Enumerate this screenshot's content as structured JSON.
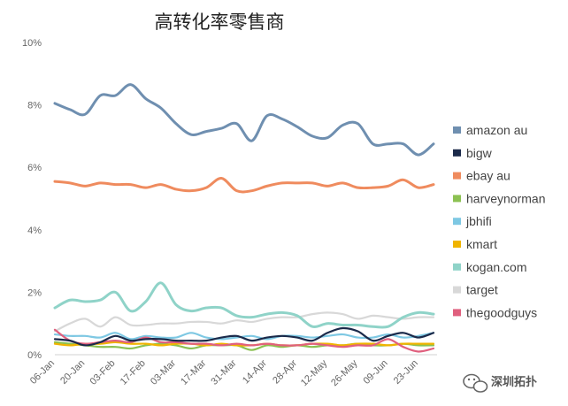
{
  "chart_data": {
    "type": "line",
    "title": "高转化率零售商",
    "xlabel": "",
    "ylabel": "",
    "ylim": [
      0,
      10
    ],
    "yticks": [
      0,
      2,
      4,
      6,
      8,
      10
    ],
    "ytick_labels": [
      "0%",
      "2%",
      "4%",
      "6%",
      "8%",
      "10%"
    ],
    "grid": false,
    "legend_position": "right",
    "x_tick_labels": [
      "06-Jan",
      "20-Jan",
      "03-Feb",
      "17-Feb",
      "03-Mar",
      "17-Mar",
      "31-Mar",
      "14-Apr",
      "28-Apr",
      "12-May",
      "26-May",
      "09-Jun",
      "23-Jun"
    ],
    "x_tick_indices": [
      0,
      2,
      4,
      6,
      8,
      10,
      12,
      14,
      16,
      18,
      20,
      22,
      24
    ],
    "series": [
      {
        "name": "amazon au",
        "color": "#6f8fb0",
        "values": [
          8.05,
          7.85,
          7.7,
          8.3,
          8.3,
          8.65,
          8.2,
          7.9,
          7.4,
          7.05,
          7.15,
          7.25,
          7.4,
          6.85,
          7.65,
          7.55,
          7.3,
          7.0,
          6.95,
          7.35,
          7.4,
          6.75,
          6.75,
          6.75,
          6.4,
          6.75
        ]
      },
      {
        "name": "bigw",
        "color": "#1b2a4a",
        "values": [
          0.5,
          0.45,
          0.3,
          0.4,
          0.6,
          0.45,
          0.5,
          0.5,
          0.45,
          0.45,
          0.45,
          0.55,
          0.6,
          0.45,
          0.55,
          0.6,
          0.55,
          0.45,
          0.7,
          0.85,
          0.75,
          0.45,
          0.6,
          0.7,
          0.55,
          0.7
        ]
      },
      {
        "name": "ebay au",
        "color": "#ef8b5e",
        "values": [
          5.55,
          5.5,
          5.4,
          5.5,
          5.45,
          5.45,
          5.35,
          5.45,
          5.3,
          5.25,
          5.35,
          5.65,
          5.25,
          5.25,
          5.4,
          5.5,
          5.5,
          5.5,
          5.4,
          5.5,
          5.35,
          5.35,
          5.4,
          5.6,
          5.35,
          5.45
        ]
      },
      {
        "name": "harveynorman",
        "color": "#8cc152",
        "values": [
          0.4,
          0.35,
          0.3,
          0.25,
          0.25,
          0.2,
          0.3,
          0.35,
          0.3,
          0.2,
          0.3,
          0.3,
          0.3,
          0.15,
          0.3,
          0.25,
          0.3,
          0.25,
          0.3,
          0.3,
          0.35,
          0.3,
          0.3,
          0.35,
          0.3,
          0.3
        ]
      },
      {
        "name": "jbhifi",
        "color": "#7ec8e3",
        "values": [
          0.65,
          0.6,
          0.6,
          0.55,
          0.7,
          0.5,
          0.6,
          0.55,
          0.55,
          0.7,
          0.55,
          0.5,
          0.55,
          0.6,
          0.5,
          0.6,
          0.6,
          0.55,
          0.6,
          0.65,
          0.55,
          0.55,
          0.65,
          0.55,
          0.6,
          0.7
        ]
      },
      {
        "name": "kmart",
        "color": "#f0b400",
        "values": [
          0.35,
          0.3,
          0.35,
          0.35,
          0.4,
          0.35,
          0.35,
          0.3,
          0.35,
          0.35,
          0.3,
          0.35,
          0.3,
          0.3,
          0.35,
          0.3,
          0.3,
          0.35,
          0.35,
          0.3,
          0.35,
          0.35,
          0.3,
          0.35,
          0.35,
          0.35
        ]
      },
      {
        "name": "kogan.com",
        "color": "#8fd3c8",
        "values": [
          1.5,
          1.75,
          1.7,
          1.75,
          2.0,
          1.4,
          1.7,
          2.3,
          1.6,
          1.4,
          1.5,
          1.5,
          1.25,
          1.2,
          1.3,
          1.35,
          1.25,
          0.9,
          1.0,
          0.95,
          0.95,
          0.9,
          0.9,
          1.2,
          1.35,
          1.3
        ]
      },
      {
        "name": "target",
        "color": "#d8d8d8",
        "values": [
          0.75,
          1.0,
          1.15,
          0.9,
          1.2,
          0.95,
          0.95,
          1.0,
          1.0,
          1.05,
          1.05,
          1.0,
          1.1,
          1.05,
          1.15,
          1.2,
          1.2,
          1.3,
          1.35,
          1.3,
          1.15,
          1.25,
          1.2,
          1.15,
          1.2,
          1.2
        ]
      },
      {
        "name": "thegoodguys",
        "color": "#e0607e",
        "values": [
          0.8,
          0.45,
          0.35,
          0.4,
          0.45,
          0.4,
          0.55,
          0.4,
          0.4,
          0.35,
          0.35,
          0.3,
          0.35,
          0.3,
          0.35,
          0.3,
          0.3,
          0.35,
          0.3,
          0.25,
          0.3,
          0.3,
          0.5,
          0.25,
          0.1,
          0.2
        ]
      }
    ]
  },
  "watermark": {
    "text": "深圳拓扑",
    "icon": "wechat-icon"
  }
}
